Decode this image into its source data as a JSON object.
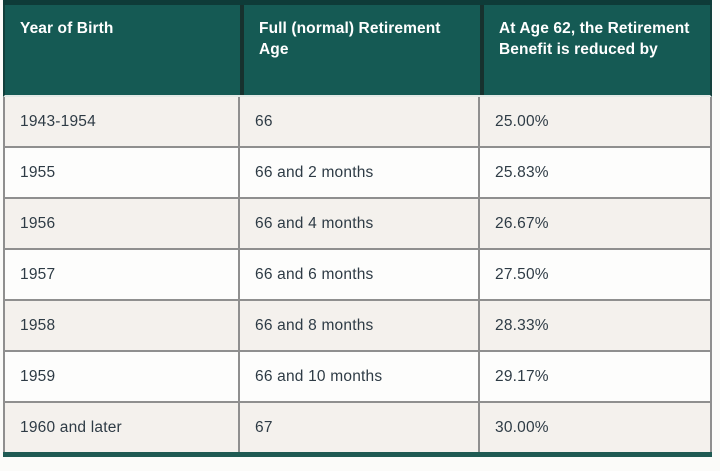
{
  "chart_data": {
    "type": "table",
    "title": "",
    "columns": [
      "Year of Birth",
      "Full (normal) Retirement Age",
      "At Age 62, the Retirement Benefit is reduced by"
    ],
    "rows": [
      [
        "1943-1954",
        "66",
        "25.00%"
      ],
      [
        "1955",
        "66 and 2 months",
        "25.83%"
      ],
      [
        "1956",
        "66 and 4 months",
        "26.67%"
      ],
      [
        "1957",
        "66 and 6 months",
        "27.50%"
      ],
      [
        "1958",
        "66 and 8 months",
        "28.33%"
      ],
      [
        "1959",
        "66 and 10 months",
        "29.17%"
      ],
      [
        "1960 and later",
        "67",
        "30.00%"
      ]
    ],
    "layout": {
      "header_position": "top",
      "alternating_rows": true,
      "grid": true
    }
  },
  "colors": {
    "header_bg": "#155a54",
    "header_text": "#ffffff",
    "top_strip": "#0e3b38",
    "header_divider": "#17312e",
    "row_bg": "#fdfdfc",
    "row_alt_bg": "#f4f1ed",
    "grid_border": "#8f8f8f",
    "body_text": "#2e3b45",
    "bottom_strip": "#1e5a53"
  }
}
